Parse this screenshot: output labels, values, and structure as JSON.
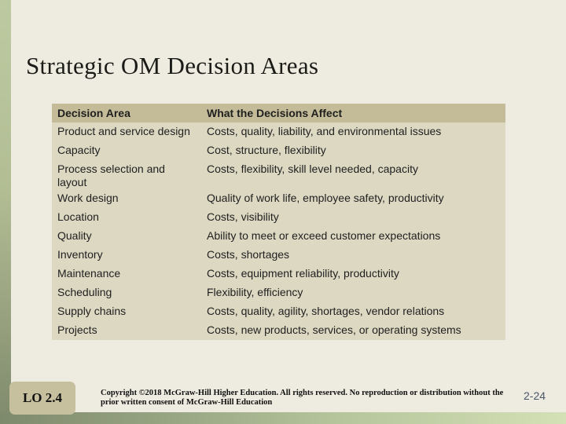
{
  "slide": {
    "title": "Strategic OM Decision Areas",
    "table": {
      "headers": [
        "Decision Area",
        "What the Decisions Affect"
      ],
      "rows": [
        [
          "Product and service design",
          "Costs, quality, liability, and environmental issues"
        ],
        [
          "Capacity",
          "Cost, structure, flexibility"
        ],
        [
          "Process selection and layout",
          "Costs, flexibility, skill level needed, capacity"
        ],
        [
          "Work design",
          "Quality of work life, employee safety, productivity"
        ],
        [
          "Location",
          "Costs, visibility"
        ],
        [
          "Quality",
          "Ability to meet or exceed customer expectations"
        ],
        [
          "Inventory",
          "Costs, shortages"
        ],
        [
          "Maintenance",
          "Costs, equipment reliability, productivity"
        ],
        [
          "Scheduling",
          "Flexibility, efficiency"
        ],
        [
          "Supply chains",
          "Costs, quality, agility,  shortages, vendor relations"
        ],
        [
          "Projects",
          "Costs, new products, services, or operating systems"
        ]
      ]
    },
    "footer": {
      "lo_label": "LO 2.4",
      "copyright": "Copyright ©2018 McGraw-Hill Higher Education.  All rights reserved. No reproduction or distribution without the prior written consent of McGraw-Hill Education",
      "page_number": "2-24"
    },
    "colors": {
      "background": "#eeebe0",
      "table_header": "#c4bc98",
      "table_body": "#dcd8c2",
      "lo_badge": "#c7c09f",
      "accent_green_light": "#bdcaa1",
      "accent_green_dark": "#7e8a6c",
      "page_number": "#4a5668"
    }
  }
}
